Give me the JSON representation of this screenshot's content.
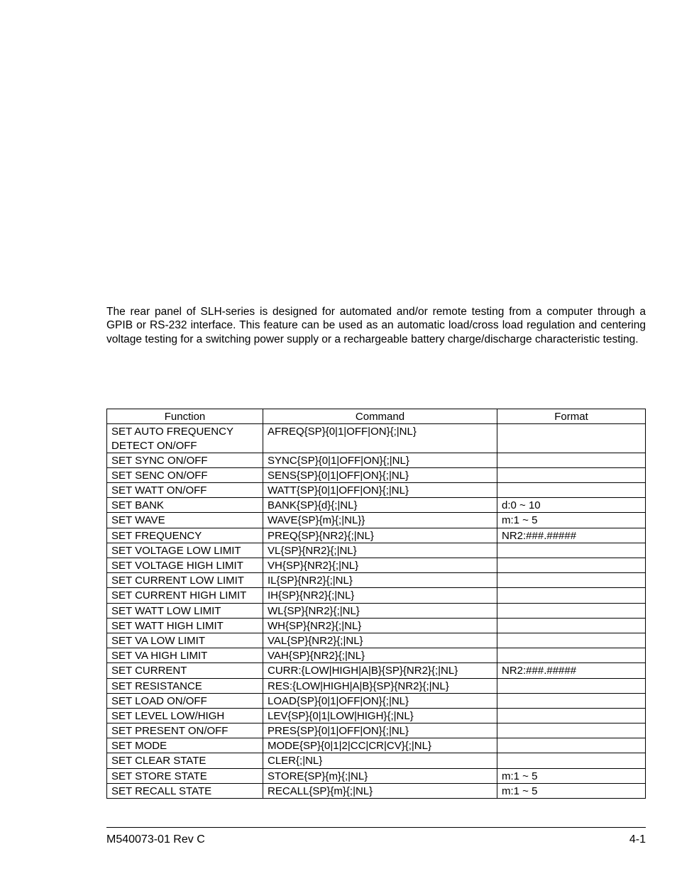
{
  "intro": "The rear panel of SLH-series is designed for automated and/or remote testing from a computer  through a GPIB or RS-232 interface.  This feature can be used as an automatic load/cross load regulation and centering voltage testing for a switching power supply or a rechargeable battery charge/discharge characteristic testing.",
  "table": {
    "headers": [
      "Function",
      "Command",
      "Format"
    ],
    "rows": [
      [
        "SET AUTO FREQUENCY DETECT ON/OFF",
        "AFREQ{SP}{0|1|OFF|ON}{;|NL}",
        ""
      ],
      [
        "SET SYNC ON/OFF",
        "SYNC{SP}{0|1|OFF|ON}{;|NL}",
        ""
      ],
      [
        "SET SENC ON/OFF",
        "SENS{SP}{0|1|OFF|ON}{;|NL}",
        ""
      ],
      [
        "SET WATT ON/OFF",
        "WATT{SP}{0|1|OFF|ON}{;|NL}",
        ""
      ],
      [
        "SET BANK",
        "BANK{SP}{d}{;|NL}",
        "d:0 ~ 10"
      ],
      [
        "SET WAVE",
        "WAVE{SP}{m}{;|NL}}",
        "m:1 ~ 5"
      ],
      [
        "SET FREQUENCY",
        "PREQ{SP}{NR2}{;|NL}",
        "NR2:###.#####"
      ],
      [
        "SET VOLTAGE LOW LIMIT",
        "VL{SP}{NR2}{;|NL}",
        ""
      ],
      [
        "SET VOLTAGE HIGH LIMIT",
        "VH{SP}{NR2}{;|NL}",
        ""
      ],
      [
        "SET CURRENT LOW LIMIT",
        "IL{SP}{NR2}{;|NL}",
        ""
      ],
      [
        "SET CURRENT HIGH LIMIT",
        "IH{SP}{NR2}{;|NL}",
        ""
      ],
      [
        "SET WATT LOW LIMIT",
        "WL{SP}{NR2}{;|NL}",
        ""
      ],
      [
        "SET WATT HIGH LIMIT",
        "WH{SP}{NR2}{;|NL}",
        ""
      ],
      [
        "SET VA LOW LIMIT",
        "VAL{SP}{NR2}{;|NL}",
        ""
      ],
      [
        "SET VA HIGH LIMIT",
        "VAH{SP}{NR2}{;|NL}",
        ""
      ],
      [
        "SET CURRENT",
        "CURR:{LOW|HIGH|A|B}{SP}{NR2}{;|NL}",
        "NR2:###.#####"
      ],
      [
        "SET RESISTANCE",
        "RES:{LOW|HIGH|A|B}{SP}{NR2}{;|NL}",
        ""
      ],
      [
        "SET LOAD ON/OFF",
        "LOAD{SP}{0|1|OFF|ON}{;|NL}",
        ""
      ],
      [
        "SET LEVEL LOW/HIGH",
        "LEV{SP}{0|1|LOW|HIGH}{;|NL}",
        ""
      ],
      [
        "SET PRESENT ON/OFF",
        "PRES{SP}{0|1|OFF|ON}{;|NL}",
        ""
      ],
      [
        "SET MODE",
        "MODE{SP}{0|1|2|CC|CR|CV}{;|NL}",
        ""
      ],
      [
        "SET CLEAR STATE",
        "CLER{;|NL}",
        ""
      ],
      [
        "SET STORE STATE",
        "STORE{SP}{m}{;|NL}",
        "m:1 ~ 5"
      ],
      [
        "SET RECALL STATE",
        "RECALL{SP}{m}{;|NL}",
        "m:1 ~ 5"
      ]
    ]
  },
  "footer": {
    "left": "M540073-01 Rev C",
    "right": "4-1"
  }
}
